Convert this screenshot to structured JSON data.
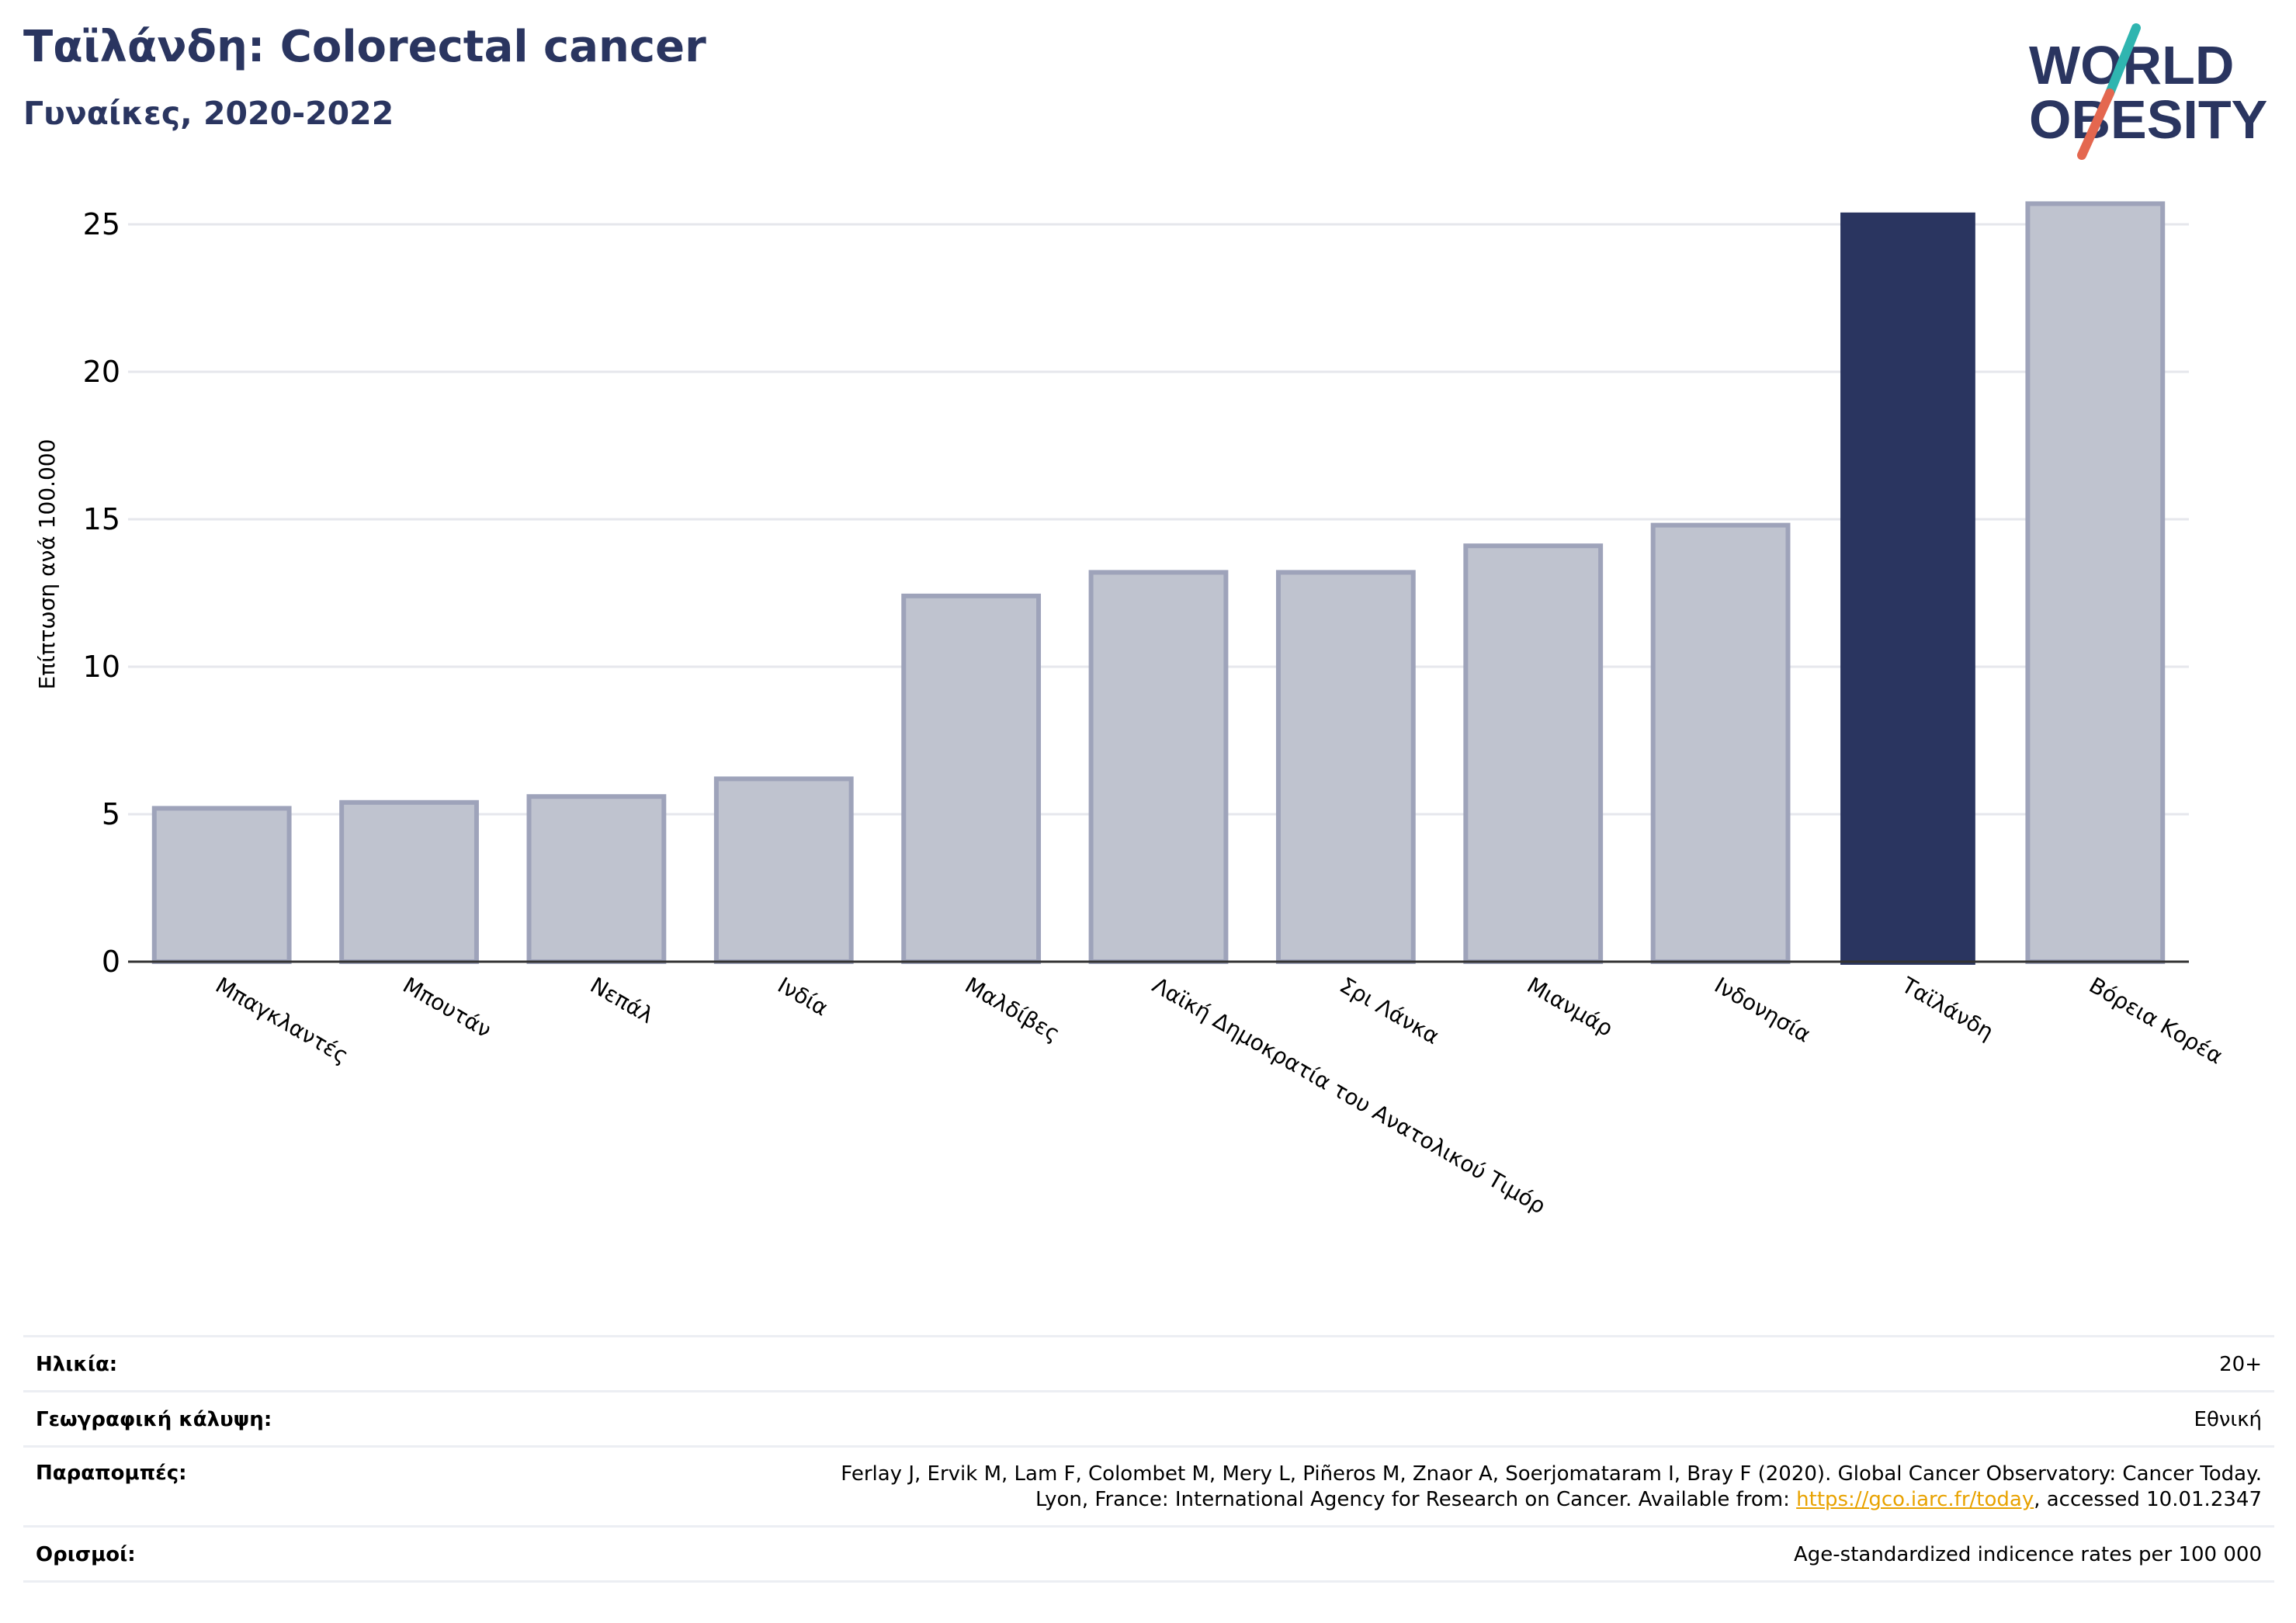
{
  "header": {
    "title": "Ταϊλάνδη: Colorectal cancer",
    "subtitle": "Γυναίκες, 2020-2022"
  },
  "logo": {
    "line1": "WORLD",
    "line2": "OBESITY",
    "icon": "world-obesity-logo"
  },
  "colors": {
    "highlight": "#2a3560",
    "bar_fill": "#bfc3cf",
    "bar_stroke": "#9ea3ba",
    "grid": "#e6e7ec",
    "axis": "#333333",
    "link": "#e8a200"
  },
  "chart_data": {
    "type": "bar",
    "categories": [
      "Μπαγκλαντές",
      "Μπουτάν",
      "Νεπάλ",
      "Ινδία",
      "Μαλδίβες",
      "Λαϊκή Δημοκρατία του Ανατολικού Τιμόρ",
      "Σρι Λάνκα",
      "Μιανμάρ",
      "Ινδονησία",
      "Ταϊλάνδη",
      "Βόρεια Κορέα"
    ],
    "values": [
      5.2,
      5.4,
      5.6,
      6.2,
      12.4,
      13.2,
      13.2,
      14.1,
      14.8,
      25.4,
      25.7
    ],
    "highlight": "Ταϊλάνδη",
    "ylabel": "Επίπτωση ανά 100.000",
    "xlabel": "",
    "ylim": [
      0,
      27
    ],
    "yticks": [
      0,
      5,
      10,
      15,
      20,
      25
    ],
    "grid": true
  },
  "meta": {
    "age_label": "Ηλικία:",
    "age_value": "20+",
    "coverage_label": "Γεωγραφική κάλυψη:",
    "coverage_value": "Εθνική",
    "refs_label": "Παραπομπές:",
    "refs_line1": "Ferlay J, Ervik M, Lam F, Colombet M, Mery L, Piñeros M, Znaor A, Soerjomataram I, Bray F (2020). Global Cancer Observatory: Cancer Today.",
    "refs_line2_pre": "Lyon, France: International Agency for Research on Cancer. Available from: ",
    "refs_link": "https://gco.iarc.fr/today",
    "refs_line2_post": ", accessed 10.01.2347",
    "defs_label": "Ορισμοί:",
    "defs_value": "Age-standardized indicence rates per 100 000"
  }
}
